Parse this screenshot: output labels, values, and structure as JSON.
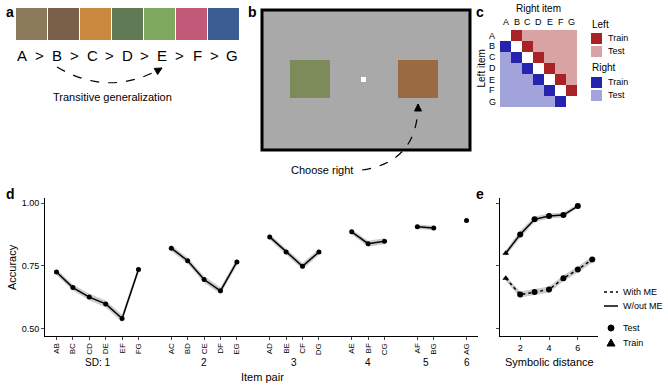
{
  "panel_a": {
    "label": "a",
    "items": [
      "A",
      "B",
      "C",
      "D",
      "E",
      "F",
      "G"
    ],
    "separator": ">",
    "caption": "Transitive generalization"
  },
  "panel_b": {
    "label": "b",
    "caption": "Choose right"
  },
  "panel_c": {
    "label": "c",
    "items": [
      "A",
      "B",
      "C",
      "D",
      "E",
      "F",
      "G"
    ],
    "row_title": "Left item",
    "col_title": "Right item",
    "legend": [
      {
        "title": "Left",
        "entries": [
          {
            "label": "Train",
            "color": "#a82424"
          },
          {
            "label": "Test",
            "color": "#d9a3a3"
          }
        ]
      },
      {
        "title": "Right",
        "entries": [
          {
            "label": "Train",
            "color": "#2424b0"
          },
          {
            "label": "Test",
            "color": "#a3a3dc"
          }
        ]
      }
    ]
  },
  "chart_data": [
    {
      "label": "d",
      "type": "line",
      "x_title": "Item pair",
      "y_title": "Accuracy",
      "categories": [
        "AB",
        "BC",
        "CD",
        "DE",
        "EF",
        "FG",
        null,
        "AC",
        "BD",
        "CE",
        "DF",
        "EG",
        null,
        "AD",
        "BE",
        "CF",
        "DG",
        null,
        "AE",
        "BF",
        "CG",
        null,
        "AF",
        "BG",
        null,
        "AG"
      ],
      "values": [
        0.725,
        0.663,
        0.625,
        0.598,
        0.54,
        0.735,
        null,
        0.82,
        0.77,
        0.695,
        0.65,
        0.765,
        null,
        0.865,
        0.805,
        0.748,
        0.805,
        null,
        0.885,
        0.838,
        0.848,
        null,
        0.905,
        0.9,
        null,
        0.93
      ],
      "error": [
        0.012,
        0.012,
        0.013,
        0.013,
        0.015,
        0.013,
        null,
        0.012,
        0.012,
        0.013,
        0.014,
        0.013,
        null,
        0.011,
        0.012,
        0.013,
        0.012,
        null,
        0.01,
        0.012,
        0.012,
        null,
        0.009,
        0.009,
        null,
        0.008
      ],
      "groups": [
        {
          "label": "SD: 1",
          "first": "AB",
          "last": "FG"
        },
        {
          "label": "2",
          "first": "AC",
          "last": "EG"
        },
        {
          "label": "3",
          "first": "AD",
          "last": "DG"
        },
        {
          "label": "4",
          "first": "AE",
          "last": "CG"
        },
        {
          "label": "5",
          "first": "AF",
          "last": "BG"
        },
        {
          "label": "6",
          "first": "AG",
          "last": "AG"
        }
      ],
      "ylim": [
        0.47,
        1.02
      ],
      "yticks": [
        {
          "value": 0.5,
          "label": "0.50"
        },
        {
          "value": 0.75,
          "label": "0.75"
        },
        {
          "value": 1.0,
          "label": "1.00"
        }
      ],
      "color": "#000000",
      "marker": "circle",
      "line_style": "solid",
      "grid": false
    },
    {
      "label": "e",
      "type": "line",
      "x_title": "Symbolic distance",
      "xlim": [
        0.6,
        7.4
      ],
      "xticks": [
        2,
        4,
        6
      ],
      "ylim": [
        0.47,
        1.02
      ],
      "yticks": [
        0.5,
        0.75,
        1.0
      ],
      "tick_labels": "x",
      "grid": false,
      "point_types": [
        {
          "name": "Test",
          "marker": "circle"
        },
        {
          "name": "Train",
          "marker": "triangle-up"
        }
      ],
      "series": [
        {
          "name": "With ME",
          "line_style": "dot",
          "color": "#000000",
          "x": [
            1,
            2,
            3,
            4,
            5,
            6,
            7
          ],
          "values": [
            0.7,
            0.635,
            0.645,
            0.655,
            0.7,
            0.735,
            0.775
          ],
          "error": [
            0.01,
            0.012,
            0.012,
            0.012,
            0.012,
            0.012,
            0.013
          ],
          "point_type": [
            "Train",
            "Test",
            "Test",
            "Test",
            "Test",
            "Test",
            "Test"
          ]
        },
        {
          "name": "W/out ME",
          "line_style": "solid",
          "color": "#000000",
          "x": [
            1,
            2,
            3,
            4,
            5,
            6
          ],
          "values": [
            0.8,
            0.875,
            0.935,
            0.948,
            0.952,
            0.988
          ],
          "error": [
            0.012,
            0.014,
            0.011,
            0.01,
            0.01,
            0.007
          ],
          "point_type": [
            "Train",
            "Test",
            "Test",
            "Test",
            "Test",
            "Test"
          ]
        }
      ]
    }
  ]
}
